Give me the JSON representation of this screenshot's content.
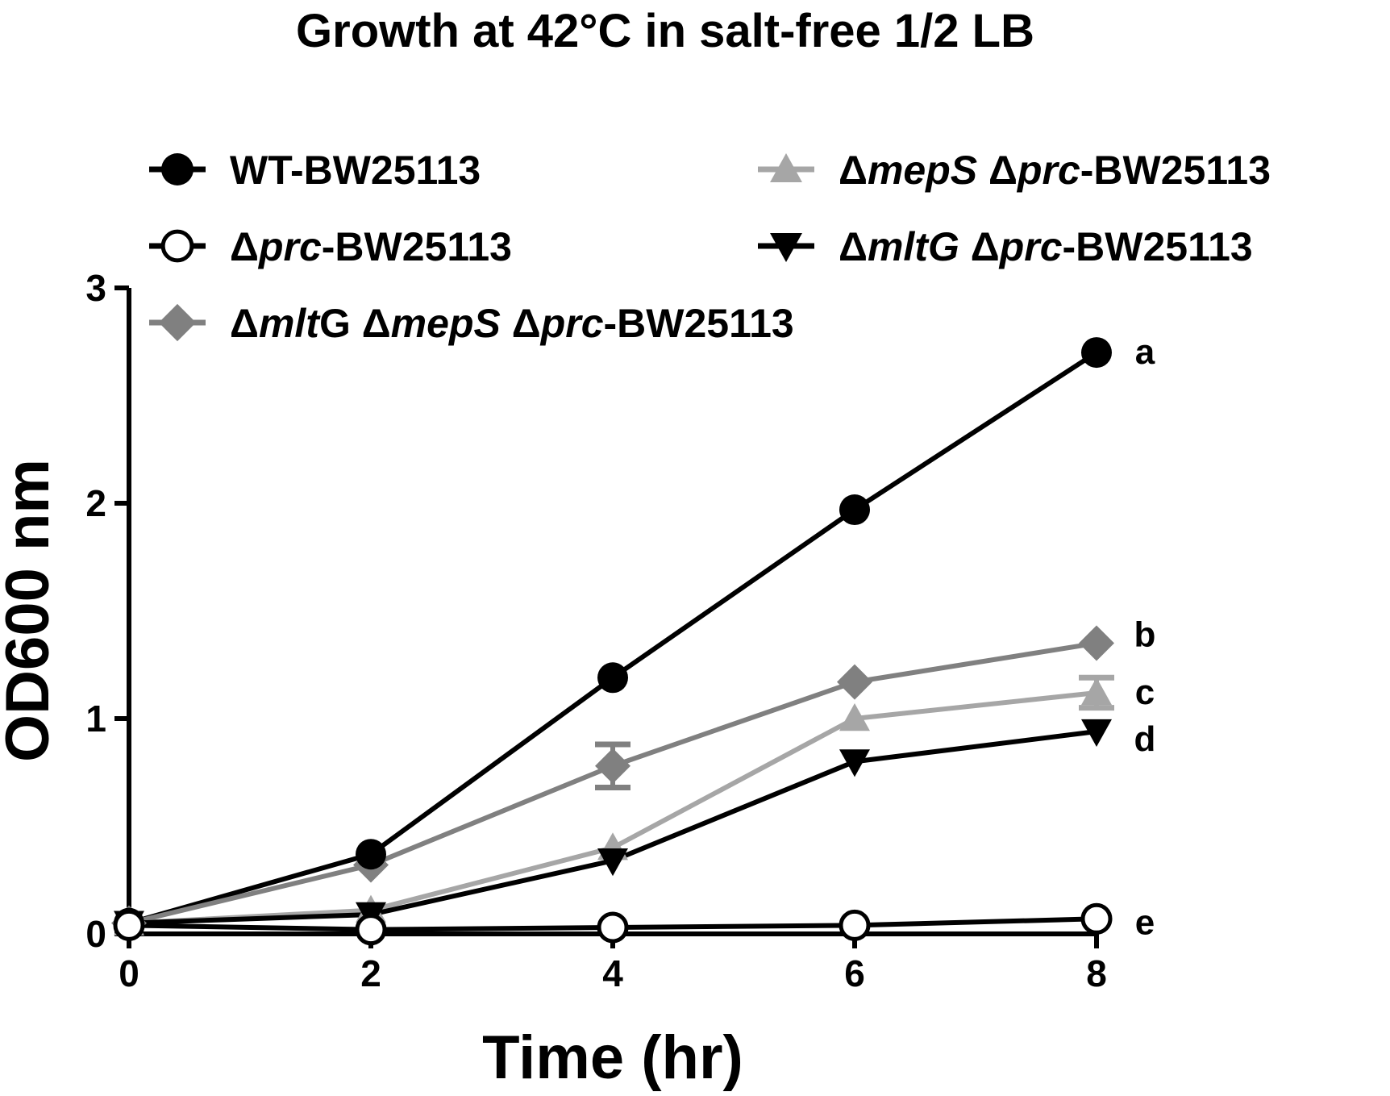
{
  "chart_data": {
    "type": "line",
    "title": "Growth at 42°C in salt-free 1/2 LB",
    "xlabel": "Time (hr)",
    "ylabel": "OD600 nm",
    "xlim": [
      0,
      8
    ],
    "ylim": [
      0,
      3
    ],
    "xticks": [
      "0",
      "2",
      "4",
      "6",
      "8"
    ],
    "yticks": [
      "0",
      "1",
      "2",
      "3"
    ],
    "grid": false,
    "legend_position": "top-left",
    "series": [
      {
        "legend": [
          {
            "t": "WT-BW25113",
            "i": false
          }
        ],
        "marker": "circle-filled",
        "color": "#000000",
        "x": [
          0,
          2,
          4,
          6,
          8
        ],
        "y": [
          0.05,
          0.37,
          1.19,
          1.97,
          2.7
        ],
        "error": [
          0,
          0,
          0,
          0,
          0
        ],
        "group": "a"
      },
      {
        "legend": [
          {
            "t": "Δ",
            "i": false
          },
          {
            "t": "prc",
            "i": true
          },
          {
            "t": "-BW25113",
            "i": false
          }
        ],
        "marker": "circle-open",
        "color": "#000000",
        "x": [
          0,
          2,
          4,
          6,
          8
        ],
        "y": [
          0.04,
          0.02,
          0.03,
          0.04,
          0.07
        ],
        "error": [
          0,
          0,
          0,
          0,
          0
        ],
        "group": "e"
      },
      {
        "legend": [
          {
            "t": "Δ",
            "i": false
          },
          {
            "t": "mlt",
            "i": true
          },
          {
            "t": "G Δ",
            "i": false
          },
          {
            "t": "mepS",
            "i": true
          },
          {
            "t": " Δ",
            "i": false
          },
          {
            "t": "prc",
            "i": true
          },
          {
            "t": "-BW25113",
            "i": false
          }
        ],
        "marker": "diamond",
        "color": "#808080",
        "x": [
          0,
          2,
          4,
          6,
          8
        ],
        "y": [
          0.05,
          0.32,
          0.78,
          1.17,
          1.35
        ],
        "error": [
          0,
          0,
          0.1,
          0,
          0
        ],
        "group": "b"
      },
      {
        "legend": [
          {
            "t": "Δ",
            "i": false
          },
          {
            "t": "mepS",
            "i": true
          },
          {
            "t": " Δ",
            "i": false
          },
          {
            "t": "prc",
            "i": true
          },
          {
            "t": "-BW25113",
            "i": false
          }
        ],
        "marker": "triangle-up",
        "color": "#a6a6a6",
        "x": [
          0,
          2,
          4,
          6,
          8
        ],
        "y": [
          0.05,
          0.11,
          0.4,
          1.0,
          1.12
        ],
        "error": [
          0,
          0,
          0,
          0,
          0.07
        ],
        "group": "c"
      },
      {
        "legend": [
          {
            "t": "Δ",
            "i": false
          },
          {
            "t": "mltG",
            "i": true
          },
          {
            "t": " Δ",
            "i": false
          },
          {
            "t": "prc",
            "i": true
          },
          {
            "t": "-BW25113",
            "i": false
          }
        ],
        "marker": "triangle-down",
        "color": "#000000",
        "x": [
          0,
          2,
          4,
          6,
          8
        ],
        "y": [
          0.05,
          0.09,
          0.34,
          0.8,
          0.94
        ],
        "error": [
          0,
          0,
          0,
          0,
          0
        ],
        "group": "d"
      }
    ]
  }
}
